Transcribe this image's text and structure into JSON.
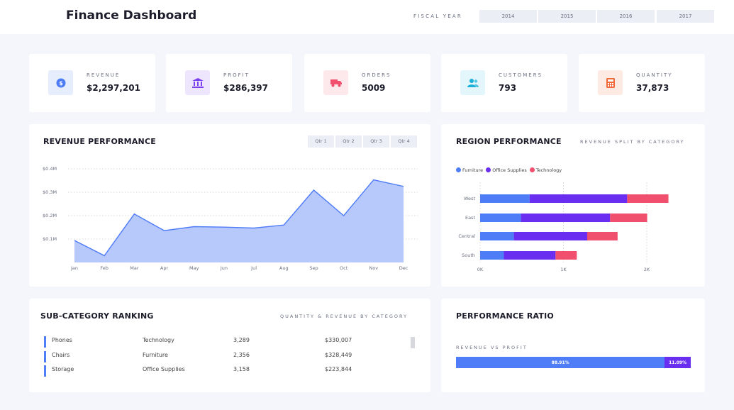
{
  "header": {
    "title": "Finance Dashboard",
    "fiscal_year_label": "FISCAL YEAR",
    "years": [
      "2014",
      "2015",
      "2016",
      "2017"
    ]
  },
  "kpis": [
    {
      "label": "REVENUE",
      "value": "$2,297,201",
      "icon": "dollar-icon",
      "icon_color": "#4f7cf7",
      "icon_bg": "#e6edfd"
    },
    {
      "label": "PROFIT",
      "value": "$286,397",
      "icon": "bank-icon",
      "icon_color": "#7b3ff2",
      "icon_bg": "#eee6fd"
    },
    {
      "label": "ORDERS",
      "value": "5009",
      "icon": "truck-icon",
      "icon_color": "#f0506e",
      "icon_bg": "#fde8ec"
    },
    {
      "label": "CUSTOMERS",
      "value": "793",
      "icon": "users-icon",
      "icon_color": "#1ab0d8",
      "icon_bg": "#e2f6fb"
    },
    {
      "label": "QUANTITY",
      "value": "37,873",
      "icon": "calculator-icon",
      "icon_color": "#f06a3a",
      "icon_bg": "#fdebe3"
    }
  ],
  "revenue_panel": {
    "title": "REVENUE PERFORMANCE",
    "quarters": [
      "Qtr 1",
      "Qtr 2",
      "Qtr 3",
      "Qtr 4"
    ]
  },
  "region_panel": {
    "title": "REGION PERFORMANCE",
    "subtitle": "REVENUE SPLIT BY CATEGORY"
  },
  "subcategory_panel": {
    "title": "SUB-CATEGORY RANKING",
    "subtitle": "QUANTITY & REVENUE BY CATEGORY",
    "rows": [
      {
        "name": "Phones",
        "category": "Technology",
        "quantity": "3,289",
        "revenue": "$330,007"
      },
      {
        "name": "Chairs",
        "category": "Furniture",
        "quantity": "2,356",
        "revenue": "$328,449"
      },
      {
        "name": "Storage",
        "category": "Office Supplies",
        "quantity": "3,158",
        "revenue": "$223,844"
      }
    ]
  },
  "ratio_panel": {
    "title": "PERFORMANCE RATIO",
    "subtitle": "REVENUE VS PROFIT",
    "segments": [
      {
        "label": "88.91%",
        "value": 88.91,
        "color": "#4f7cf7"
      },
      {
        "label": "11.09%",
        "value": 11.09,
        "color": "#6a2ef0"
      }
    ]
  },
  "chart_data": [
    {
      "type": "area",
      "categories": [
        "Jan",
        "Feb",
        "Mar",
        "Apr",
        "May",
        "Jun",
        "Jul",
        "Aug",
        "Sep",
        "Oct",
        "Nov",
        "Dec"
      ],
      "values": [
        94000,
        29000,
        207000,
        136000,
        153000,
        151000,
        147000,
        160000,
        309000,
        200000,
        353000,
        325000
      ],
      "ytick_labels": [
        "$0.1M",
        "$0.2M",
        "$0.3M",
        "$0.4M"
      ],
      "yticks": [
        100000,
        200000,
        300000,
        400000
      ],
      "ylim": [
        0,
        400000
      ],
      "grid": true,
      "color": "#4f7cf7",
      "fill": "#b7c8fb"
    },
    {
      "type": "bar",
      "orientation": "horizontal",
      "stacked": true,
      "categories": [
        "West",
        "East",
        "Central",
        "South"
      ],
      "series": [
        {
          "name": "Furniture",
          "color": "#4f7cf7",
          "values": [
            595,
            490,
            405,
            285
          ]
        },
        {
          "name": "Office Supplies",
          "color": "#6a2ef0",
          "values": [
            1170,
            1070,
            880,
            620
          ]
        },
        {
          "name": "Technology",
          "color": "#f0506e",
          "values": [
            495,
            445,
            365,
            255
          ]
        }
      ],
      "xticks": [
        0,
        1000,
        2000
      ],
      "xtick_labels": [
        "0K",
        "1K",
        "2K"
      ],
      "xlim": [
        0,
        2000
      ],
      "legend_position": "top-left",
      "grid": true
    }
  ]
}
